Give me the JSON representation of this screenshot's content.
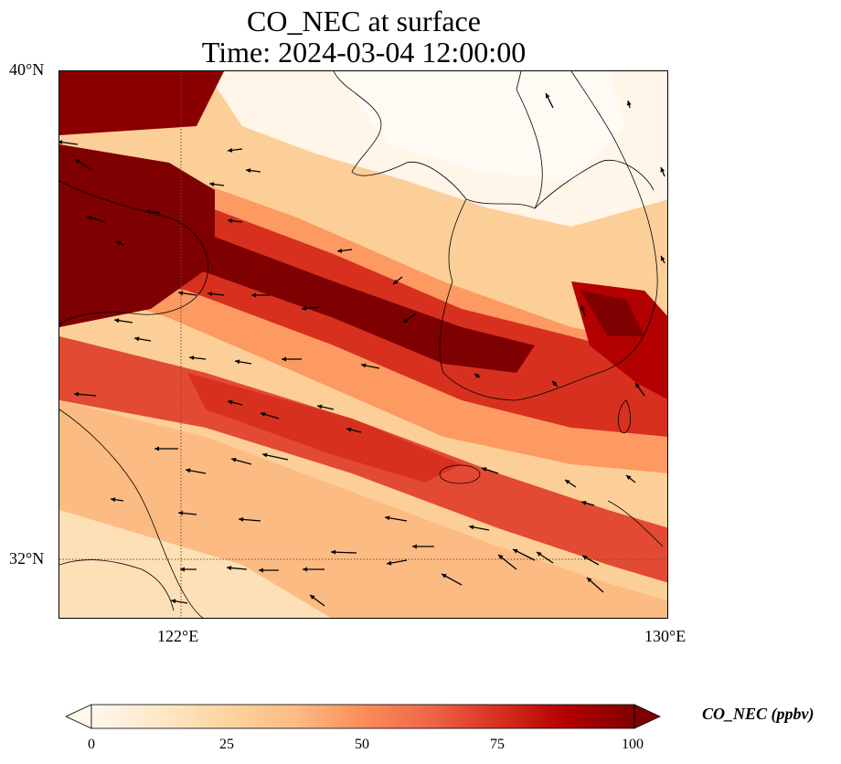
{
  "title": {
    "line1": "CO_NEC at surface",
    "line2": "Time: 2024-03-04 12:00:00"
  },
  "axes": {
    "lat_labels": [
      "40°N",
      "32°N"
    ],
    "lon_labels": [
      "122°E",
      "130°E"
    ]
  },
  "colorbar": {
    "title": "CO_NEC (ppbv)",
    "ticks": [
      "0",
      "25",
      "50",
      "75",
      "100"
    ],
    "colormap": "OrRd",
    "colors": [
      "#fff7ec",
      "#fee8c8",
      "#fdd49e",
      "#fdbb84",
      "#fc8d59",
      "#ef6548",
      "#d7301f",
      "#b30000",
      "#7f0000"
    ]
  }
}
